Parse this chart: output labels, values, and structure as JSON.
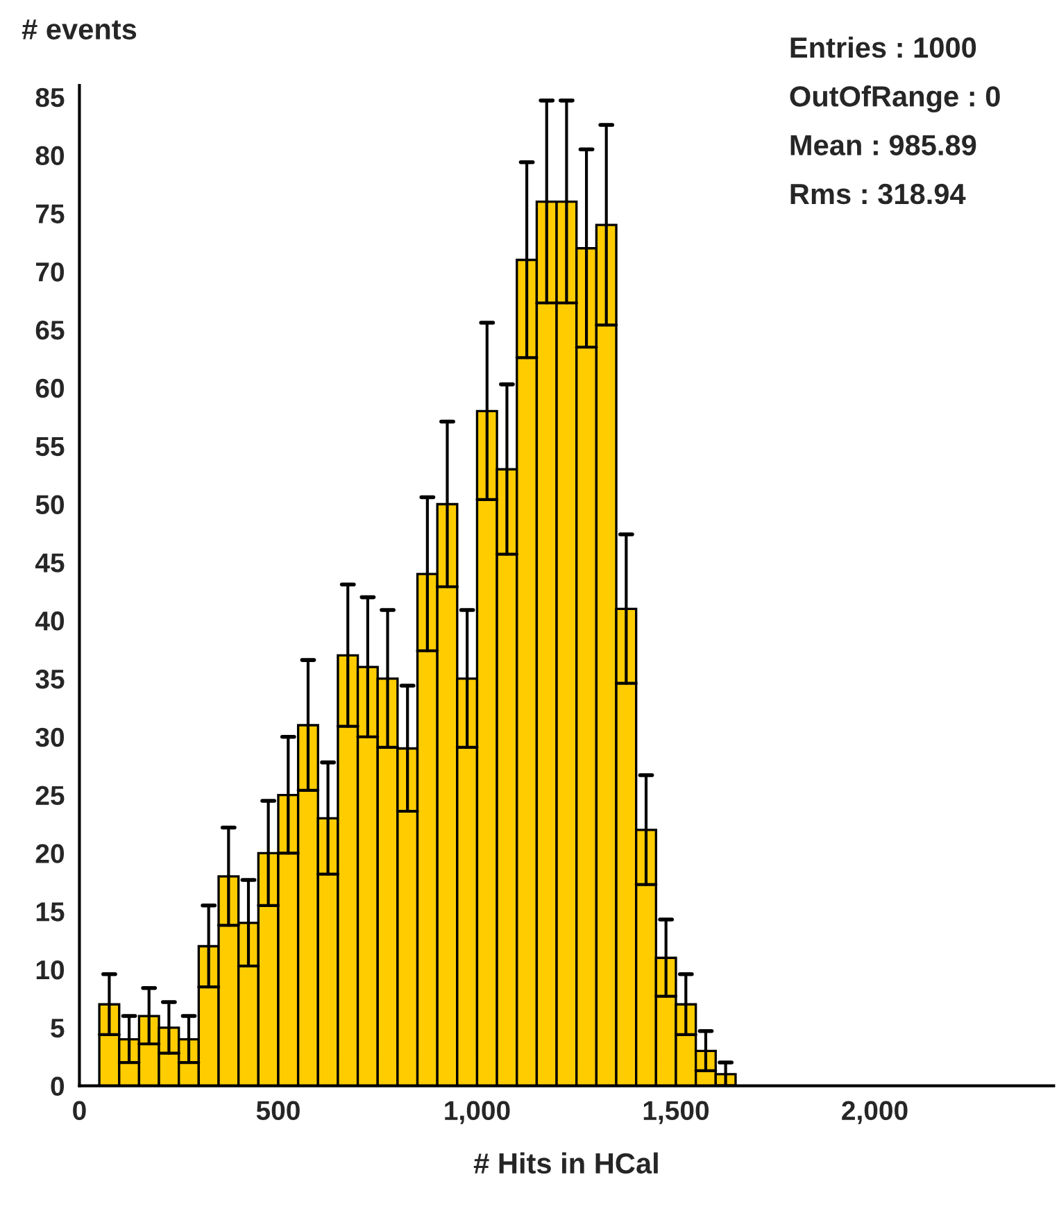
{
  "chart_data": {
    "type": "histogram",
    "ylabel": "# events",
    "xlabel": "# Hits in HCal",
    "bins": [
      50,
      100,
      150,
      200,
      250,
      300,
      350,
      400,
      450,
      500,
      550,
      600,
      650,
      700,
      750,
      800,
      850,
      900,
      950,
      1000,
      1050,
      1100,
      1150,
      1200,
      1250,
      1300,
      1350,
      1400,
      1450,
      1500,
      1550,
      1600,
      1650
    ],
    "values": [
      7,
      4,
      6,
      5,
      4,
      12,
      18,
      14,
      20,
      25,
      31,
      23,
      37,
      36,
      35,
      29,
      44,
      50,
      35,
      58,
      53,
      71,
      76,
      76,
      72,
      74,
      41,
      22,
      11,
      7,
      3,
      1
    ],
    "errors": [
      2.6,
      2.0,
      2.4,
      2.2,
      2.0,
      3.5,
      4.2,
      3.7,
      4.5,
      5.0,
      5.6,
      4.8,
      6.1,
      6.0,
      5.9,
      5.4,
      6.6,
      7.1,
      5.9,
      7.6,
      7.3,
      8.4,
      8.7,
      8.7,
      8.5,
      8.6,
      6.4,
      4.7,
      3.3,
      2.6,
      1.7,
      1.0
    ],
    "color": "#ffcc00",
    "xlim": [
      0,
      2450
    ],
    "ylim": [
      0,
      86
    ],
    "xticks": [
      0,
      500,
      {
        "value": 1000,
        "label": "1,000"
      },
      {
        "value": 1500,
        "label": "1,500"
      },
      {
        "value": 2000,
        "label": "2,000"
      }
    ],
    "yticks": [
      0,
      5,
      10,
      15,
      20,
      25,
      30,
      35,
      40,
      45,
      50,
      55,
      60,
      65,
      70,
      75,
      80,
      85
    ],
    "annotations": [
      "Entries : 1000",
      "OutOfRange : 0",
      "Mean : 985.89",
      "Rms : 318.94"
    ],
    "grid": false,
    "legend": false
  }
}
